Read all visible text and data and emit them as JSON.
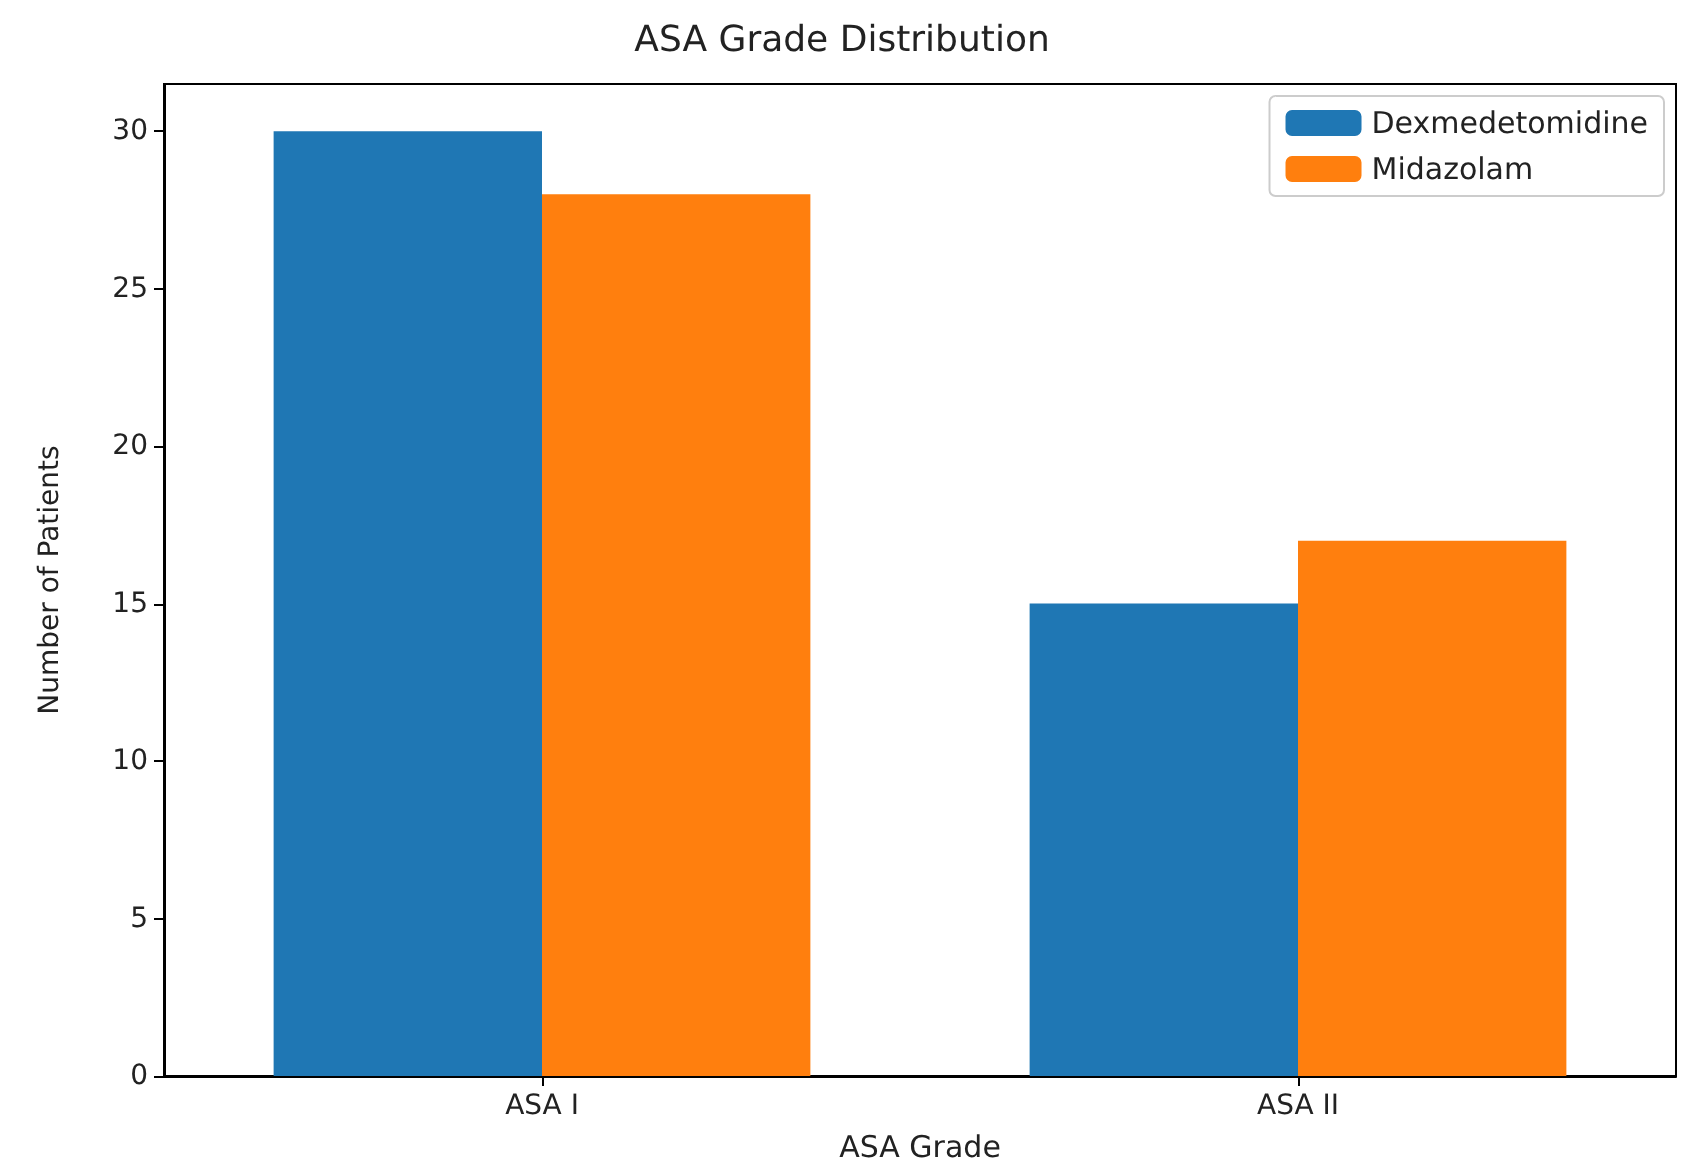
{
  "chart_data": {
    "type": "bar",
    "title": "ASA Grade Distribution",
    "xlabel": "ASA Grade",
    "ylabel": "Number of Patients",
    "categories": [
      "ASA I",
      "ASA II"
    ],
    "series": [
      {
        "name": "Dexmedetomidine",
        "color": "#1f77b4",
        "values": [
          30,
          15
        ]
      },
      {
        "name": "Midazolam",
        "color": "#ff7f0e",
        "values": [
          28,
          17
        ]
      }
    ],
    "ylim": [
      0,
      31.5
    ],
    "yticks": [
      0,
      5,
      10,
      15,
      20,
      25,
      30
    ],
    "grid": false,
    "legend": "top right"
  }
}
